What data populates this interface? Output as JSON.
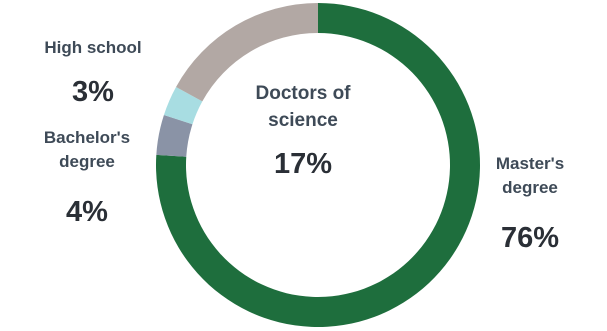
{
  "chart_data": {
    "type": "pie",
    "style": "donut",
    "categories": [
      "Master's degree",
      "Bachelor's degree",
      "High school",
      "Doctors of science"
    ],
    "values": [
      76,
      4,
      3,
      17
    ],
    "value_labels": [
      "76%",
      "4%",
      "3%",
      "17%"
    ],
    "colors": [
      "#1e6e3d",
      "#8a93a6",
      "#a8dde2",
      "#b2a8a4"
    ],
    "legend": "none",
    "labels": {
      "masters": {
        "name": [
          "Master's",
          "degree"
        ],
        "value": "76%"
      },
      "bachelors": {
        "name": [
          "Bachelor's",
          "degree"
        ],
        "value": "4%"
      },
      "highschool": {
        "name": [
          "High school"
        ],
        "value": "3%"
      },
      "doctors": {
        "name": [
          "Doctors of",
          "science"
        ],
        "value": "17%"
      }
    }
  }
}
